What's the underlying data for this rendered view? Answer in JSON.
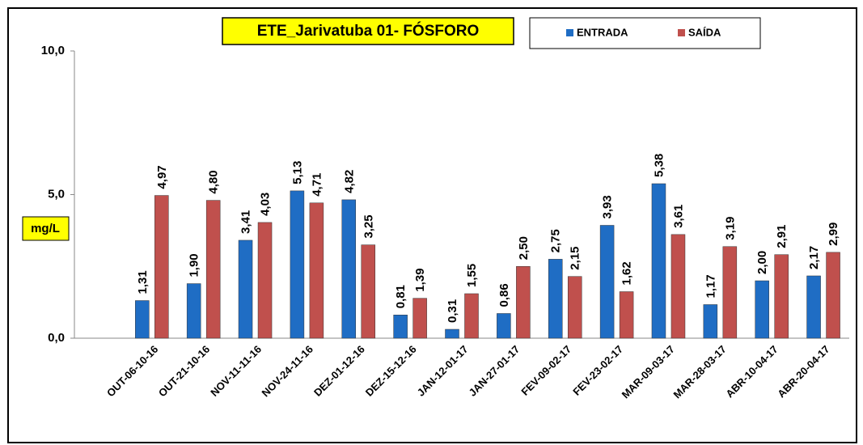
{
  "chart_data": {
    "type": "bar",
    "title": "ETE_Jarivatuba 01- FÓSFORO",
    "y_label": "mg/L",
    "categories": [
      null,
      "OUT-06-10-16",
      "OUT-21-10-16",
      "NOV-11-11-16",
      "NOV-24-11-16",
      "DEZ-01-12-16",
      "DEZ-15-12-16",
      "JAN-12-01-17",
      "JAN-27-01-17",
      "FEV-09-02-17",
      "FEV-23-02-17",
      "MAR-09-03-17",
      "MAR-28-03-17",
      "ABR-10-04-17",
      "ABR-20-04-17"
    ],
    "series": [
      {
        "name": "ENTRADA",
        "color": "#1f6dc4",
        "values": [
          null,
          1.31,
          1.9,
          3.41,
          5.13,
          4.82,
          0.81,
          0.31,
          0.86,
          2.75,
          3.93,
          5.38,
          1.17,
          2.0,
          2.17
        ],
        "value_labels": [
          null,
          "1,31",
          "1,90",
          "3,41",
          "5,13",
          "4,82",
          "0,81",
          "0,31",
          "0,86",
          "2,75",
          "3,93",
          "5,38",
          "1,17",
          "2,00",
          "2,17"
        ]
      },
      {
        "name": "SAÍDA",
        "color": "#c0504d",
        "values": [
          null,
          4.97,
          4.8,
          4.03,
          4.71,
          3.25,
          1.39,
          1.55,
          2.5,
          2.15,
          1.62,
          3.61,
          3.19,
          2.91,
          2.99
        ],
        "value_labels": [
          null,
          "4,97",
          "4,80",
          "4,03",
          "4,71",
          "3,25",
          "1,39",
          "1,55",
          "2,50",
          "2,15",
          "1,62",
          "3,61",
          "3,19",
          "2,91",
          "2,99"
        ]
      }
    ],
    "ylim": [
      0,
      10
    ],
    "yticks": [
      {
        "value": 0,
        "label": "0,0"
      },
      {
        "value": 5,
        "label": "5,0"
      },
      {
        "value": 10,
        "label": "10,0"
      }
    ],
    "grid": false
  }
}
